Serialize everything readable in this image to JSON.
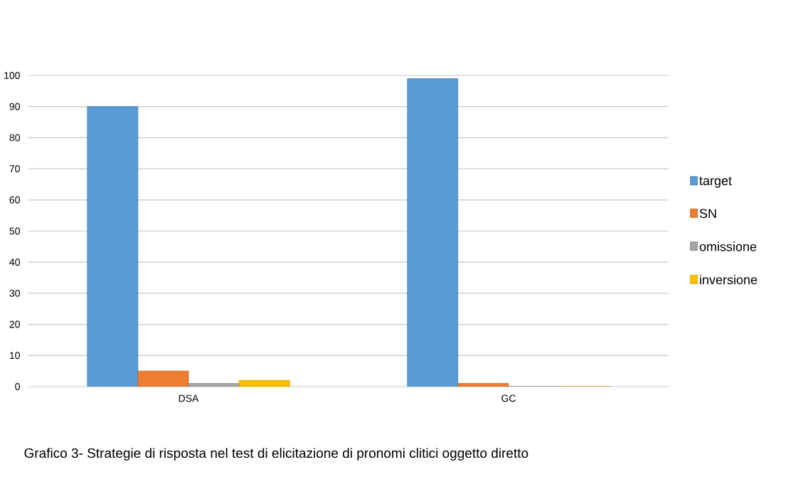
{
  "chart_data": {
    "type": "bar",
    "categories": [
      "DSA",
      "GC"
    ],
    "series": [
      {
        "name": "target",
        "color": "#5b9bd5",
        "values": [
          90,
          99
        ]
      },
      {
        "name": "SN",
        "color": "#ed7d31",
        "values": [
          5,
          1
        ]
      },
      {
        "name": "omissione",
        "color": "#a5a5a5",
        "values": [
          1,
          0
        ]
      },
      {
        "name": "inversione",
        "color": "#ffc000",
        "values": [
          2,
          0
        ]
      }
    ],
    "ylim": [
      0,
      100
    ],
    "yticks": [
      0,
      10,
      20,
      30,
      40,
      50,
      60,
      70,
      80,
      90,
      100
    ],
    "grid": "y",
    "legend": "right",
    "annotations": [
      "Grafico 3- Strategie di risposta nel test di elicitazione di pronomi clitici oggetto diretto"
    ]
  }
}
